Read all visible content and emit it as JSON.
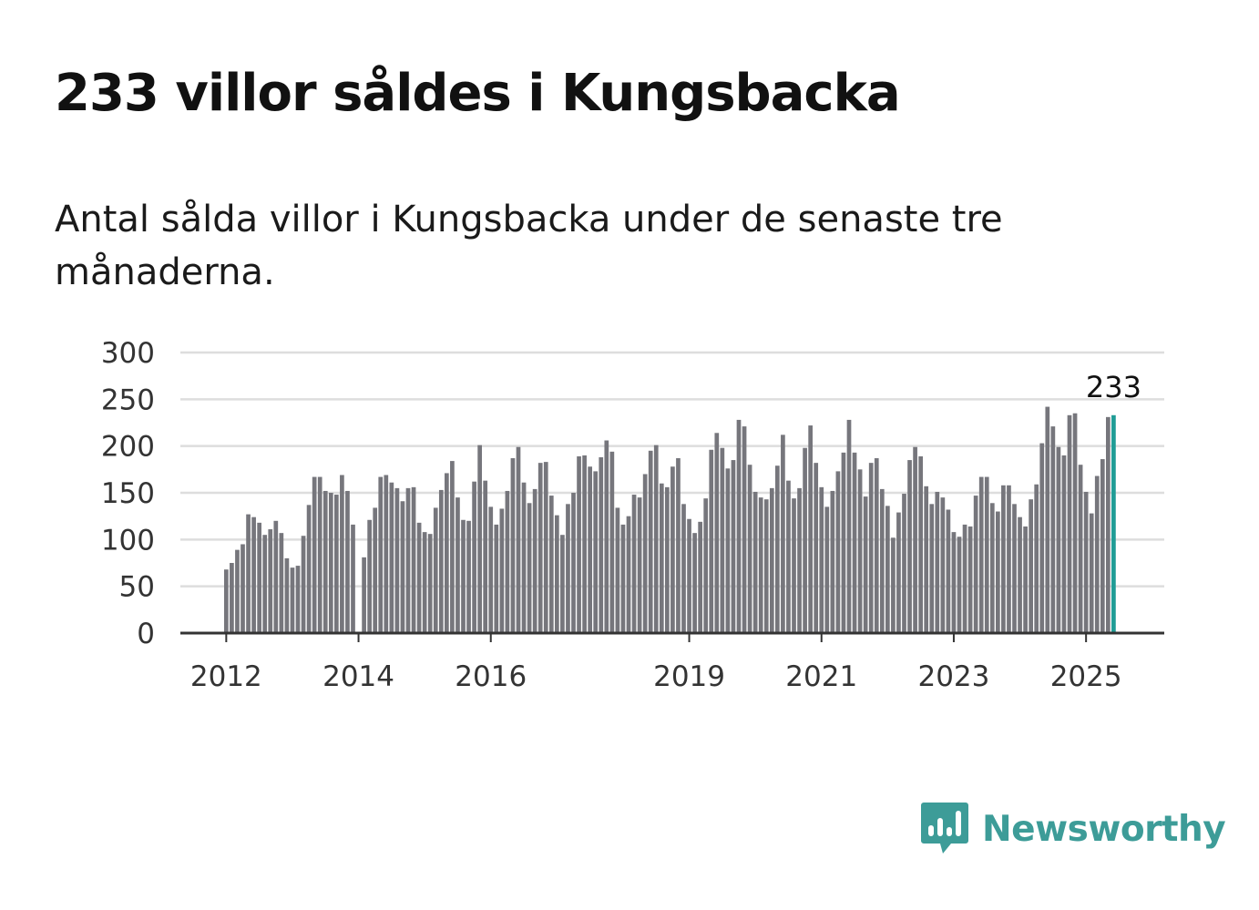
{
  "title": "233 villor såldes i Kungsbacka",
  "subtitle": "Antal sålda villor i Kungsbacka under de senaste tre månaderna.",
  "brand": {
    "name": "Newsworthy",
    "color": "#3d9c98",
    "icon": "newsworthy-logo-icon"
  },
  "colors": {
    "bar": "#76767c",
    "highlight": "#1f9c95",
    "grid": "#dddddd",
    "axis": "#333333"
  },
  "chart_data": {
    "type": "bar",
    "title": "",
    "xlabel": "",
    "ylabel": "",
    "ylim": [
      0,
      300
    ],
    "yticks": [
      0,
      50,
      100,
      150,
      200,
      250,
      300
    ],
    "xticks": [
      "2012",
      "2014",
      "2016",
      "2019",
      "2021",
      "2023",
      "2025"
    ],
    "grid": true,
    "start_period": "2012-01",
    "frequency": "monthly",
    "highlight_label": "233",
    "values": [
      68,
      75,
      89,
      95,
      127,
      124,
      118,
      105,
      111,
      120,
      107,
      80,
      70,
      72,
      104,
      137,
      167,
      167,
      152,
      150,
      148,
      169,
      152,
      116,
      null,
      81,
      121,
      134,
      167,
      169,
      161,
      155,
      141,
      155,
      156,
      118,
      108,
      106,
      134,
      153,
      171,
      184,
      145,
      121,
      120,
      162,
      201,
      163,
      135,
      116,
      133,
      152,
      187,
      199,
      161,
      139,
      154,
      182,
      183,
      147,
      126,
      105,
      138,
      150,
      189,
      190,
      178,
      173,
      188,
      206,
      194,
      134,
      116,
      125,
      148,
      145,
      170,
      195,
      201,
      160,
      156,
      178,
      187,
      138,
      122,
      107,
      119,
      144,
      196,
      214,
      198,
      176,
      185,
      228,
      221,
      180,
      151,
      145,
      143,
      155,
      179,
      212,
      163,
      144,
      155,
      198,
      222,
      182,
      156,
      135,
      152,
      173,
      193,
      228,
      193,
      175,
      146,
      182,
      187,
      154,
      136,
      102,
      129,
      149,
      185,
      199,
      189,
      157,
      138,
      151,
      145,
      132,
      108,
      103,
      116,
      114,
      147,
      167,
      167,
      139,
      130,
      158,
      158,
      138,
      124,
      114,
      143,
      159,
      203,
      242,
      221,
      199,
      190,
      233,
      235,
      180,
      151,
      128,
      168,
      186,
      231,
      233
    ]
  }
}
